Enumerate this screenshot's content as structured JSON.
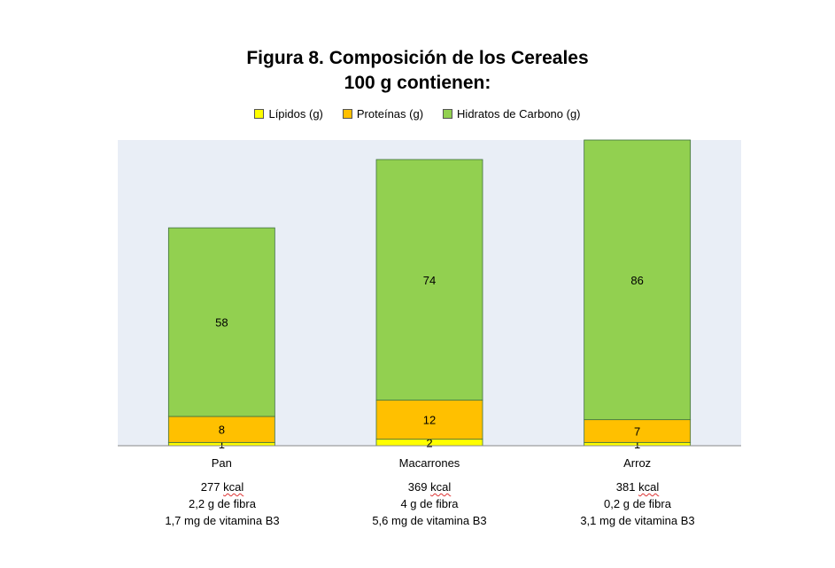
{
  "chart_data": {
    "type": "bar",
    "stacked": true,
    "title": "Figura 8. Composición de los Cereales",
    "subtitle": "100 g contienen:",
    "categories": [
      "Pan",
      "Macarrones",
      "Arroz"
    ],
    "series": [
      {
        "name": "Lípidos (g)",
        "color": "#ffff00",
        "values": [
          1,
          2,
          1
        ]
      },
      {
        "name": "Proteínas (g)",
        "color": "#ffc000",
        "values": [
          8,
          12,
          7
        ]
      },
      {
        "name": "Hidratos de Carbono (g)",
        "color": "#92d050",
        "values": [
          58,
          74,
          86
        ]
      }
    ],
    "ylim": [
      0,
      94
    ],
    "grid": false,
    "legend_position": "top",
    "plot_background": "#e9eef6"
  },
  "notes": [
    {
      "kcal": "277",
      "kcal_unit": "kcal",
      "fibra": "2,2 g de fibra",
      "vitamina": "1,7 mg de vitamina B3"
    },
    {
      "kcal": "369",
      "kcal_unit": "kcal",
      "fibra": "4 g de fibra",
      "vitamina": "5,6 mg de vitamina B3"
    },
    {
      "kcal": "381",
      "kcal_unit": "kcal",
      "fibra": "0,2 g de fibra",
      "vitamina": "3,1 mg de vitamina B3"
    }
  ]
}
